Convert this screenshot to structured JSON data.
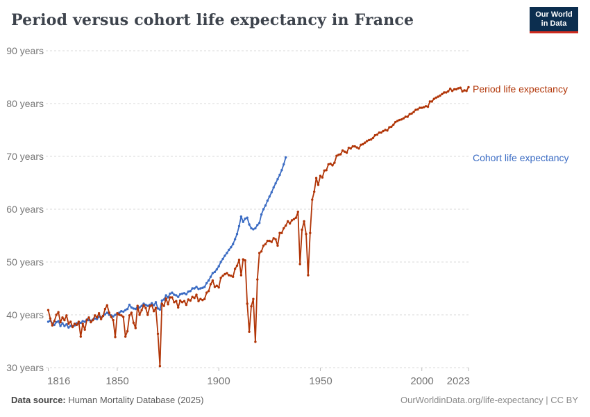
{
  "header": {
    "title": "Period versus cohort life expectancy in France",
    "logo": {
      "line1": "Our World",
      "line2": "in Data",
      "bg_color": "#0c2e4f",
      "accent_color": "#cf2b1e"
    }
  },
  "chart_data": {
    "type": "line",
    "title": "Period versus cohort life expectancy in France",
    "xlabel": "",
    "ylabel": "",
    "xlim": [
      1816,
      2023
    ],
    "ylim": [
      30,
      90
    ],
    "grid": "horizontal-dashed",
    "legend_position": "right-edge-labels",
    "x_tick_labels": [
      "1816",
      "1850",
      "1900",
      "1950",
      "2000",
      "2023"
    ],
    "x_tick_years": [
      1816,
      1850,
      1900,
      1950,
      2000,
      2023
    ],
    "y_tick_labels": [
      "90 years",
      "80 years",
      "70 years",
      "60 years",
      "50 years",
      "40 years",
      "30 years"
    ],
    "y_tick_values": [
      90,
      80,
      70,
      60,
      50,
      40,
      30
    ],
    "series": [
      {
        "name": "Period life expectancy",
        "color": "#B13507",
        "start_year": 1816,
        "end_year": 2023,
        "values": [
          40.9,
          39.3,
          38.0,
          38.8,
          40.0,
          40.5,
          38.6,
          39.5,
          39.0,
          39.9,
          38.3,
          38.7,
          37.7,
          38.3,
          38.1,
          38.7,
          35.9,
          38.3,
          37.2,
          39.0,
          39.5,
          38.6,
          39.0,
          39.9,
          39.5,
          40.3,
          39.2,
          39.8,
          41.1,
          41.8,
          40.4,
          39.6,
          39.0,
          35.8,
          40.3,
          40.0,
          39.9,
          39.6,
          35.9,
          36.9,
          39.9,
          40.4,
          38.5,
          37.5,
          41.7,
          40.0,
          40.9,
          41.8,
          41.3,
          40.0,
          41.6,
          41.8,
          40.7,
          41.3,
          36.4,
          30.3,
          42.1,
          41.7,
          43.1,
          42.0,
          43.3,
          43.3,
          42.4,
          42.6,
          41.4,
          42.7,
          42.4,
          42.6,
          41.9,
          42.9,
          42.7,
          43.4,
          43.2,
          43.8,
          42.6,
          43.0,
          42.8,
          43.0,
          44.2,
          44.5,
          45.8,
          46.5,
          45.3,
          45.5,
          45.2,
          47.0,
          47.4,
          47.7,
          47.9,
          47.5,
          47.4,
          47.2,
          48.7,
          49.3,
          50.4,
          47.5,
          50.5,
          50.3,
          42.1,
          36.8,
          41.6,
          43.0,
          34.9,
          46.7,
          51.7,
          52.0,
          53.1,
          53.4,
          54.0,
          54.0,
          53.8,
          54.5,
          54.3,
          53.1,
          55.5,
          55.5,
          56.4,
          56.9,
          57.7,
          57.3,
          57.9,
          58.1,
          58.4,
          59.5,
          49.6,
          56.1,
          57.7,
          55.3,
          47.5,
          55.5,
          61.8,
          63.3,
          65.9,
          64.6,
          66.3,
          66.0,
          67.3,
          67.4,
          68.5,
          68.6,
          68.3,
          68.8,
          70.1,
          70.3,
          70.4,
          71.1,
          70.9,
          70.7,
          71.6,
          71.5,
          71.9,
          71.9,
          71.7,
          71.5,
          72.2,
          72.3,
          72.6,
          72.9,
          73.1,
          73.2,
          73.5,
          74.0,
          74.1,
          74.5,
          74.5,
          74.8,
          75.0,
          74.9,
          75.5,
          75.6,
          76.0,
          76.5,
          76.7,
          76.9,
          77.0,
          77.2,
          77.5,
          77.5,
          78.0,
          78.1,
          78.4,
          78.8,
          78.9,
          79.2,
          79.2,
          79.3,
          79.5,
          79.4,
          80.4,
          80.4,
          80.9,
          81.1,
          81.3,
          81.5,
          81.8,
          82.1,
          82.1,
          82.3,
          82.8,
          82.4,
          82.7,
          82.7,
          82.9,
          83.0,
          82.3,
          82.5,
          82.4,
          83.1
        ]
      },
      {
        "name": "Cohort life expectancy",
        "color": "#3A6BC3",
        "start_year": 1816,
        "end_year": 1933,
        "values": [
          38.7,
          38.9,
          38.4,
          38.1,
          38.6,
          38.8,
          37.9,
          38.4,
          37.9,
          38.2,
          37.6,
          37.9,
          37.8,
          38.0,
          38.4,
          38.3,
          38.5,
          38.8,
          38.7,
          39.1,
          39.0,
          38.9,
          39.1,
          39.3,
          39.2,
          39.6,
          39.5,
          39.8,
          40.1,
          40.4,
          40.0,
          39.9,
          39.7,
          40.0,
          40.2,
          40.4,
          40.7,
          40.6,
          40.9,
          41.1,
          41.9,
          41.4,
          41.2,
          41.1,
          41.6,
          41.4,
          41.7,
          42.1,
          41.9,
          41.7,
          41.9,
          42.2,
          41.8,
          42.4,
          41.2,
          41.0,
          42.7,
          42.9,
          43.7,
          43.3,
          44.0,
          44.2,
          43.8,
          43.7,
          43.4,
          43.9,
          44.0,
          44.1,
          43.9,
          44.4,
          44.5,
          45.0,
          45.0,
          45.3,
          44.9,
          45.0,
          45.1,
          45.3,
          46.0,
          46.5,
          47.2,
          47.9,
          48.1,
          48.6,
          49.2,
          50.0,
          50.6,
          51.2,
          51.7,
          52.3,
          52.8,
          53.4,
          54.3,
          55.3,
          56.8,
          58.6,
          57.6,
          58.2,
          58.4,
          57.1,
          56.4,
          56.2,
          56.4,
          57.0,
          57.4,
          59.0,
          60.0,
          60.7,
          61.6,
          62.4,
          63.2,
          64.1,
          64.9,
          65.7,
          66.5,
          67.4,
          68.5,
          69.8
        ]
      }
    ]
  },
  "footer": {
    "source_label": "Data source:",
    "source_text": " Human Mortality Database (2025)",
    "attribution": "OurWorldinData.org/life-expectancy | CC BY"
  }
}
